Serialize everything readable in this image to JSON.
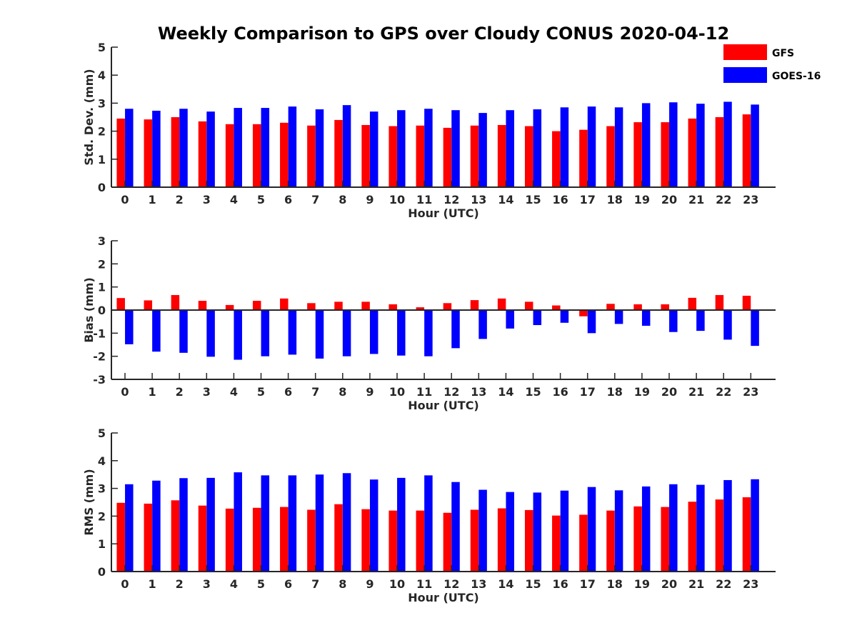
{
  "title": "Weekly Comparison to GPS over Cloudy CONUS 2020-04-12",
  "legend": [
    {
      "name": "GFS",
      "color": "#ff0000"
    },
    {
      "name": "GOES-16",
      "color": "#0000ff"
    }
  ],
  "chart_data": [
    {
      "type": "bar",
      "xlabel": "Hour (UTC)",
      "ylabel": "Std. Dev. (mm)",
      "ylim": [
        0,
        5
      ],
      "yticks": [
        0,
        1,
        2,
        3,
        4,
        5
      ],
      "categories": [
        "0",
        "1",
        "2",
        "3",
        "4",
        "5",
        "6",
        "7",
        "8",
        "9",
        "10",
        "11",
        "12",
        "13",
        "14",
        "15",
        "16",
        "17",
        "18",
        "19",
        "20",
        "21",
        "22",
        "23"
      ],
      "series": [
        {
          "name": "GFS",
          "color": "#ff0000",
          "values": [
            2.45,
            2.42,
            2.5,
            2.35,
            2.25,
            2.25,
            2.3,
            2.2,
            2.4,
            2.22,
            2.18,
            2.2,
            2.12,
            2.2,
            2.22,
            2.18,
            2.0,
            2.05,
            2.18,
            2.32,
            2.32,
            2.45,
            2.5,
            2.6
          ]
        },
        {
          "name": "GOES-16",
          "color": "#0000ff",
          "values": [
            2.8,
            2.73,
            2.8,
            2.7,
            2.83,
            2.83,
            2.88,
            2.78,
            2.93,
            2.7,
            2.75,
            2.8,
            2.75,
            2.65,
            2.75,
            2.78,
            2.85,
            2.88,
            2.85,
            3.0,
            3.03,
            2.98,
            3.05,
            2.95
          ]
        }
      ]
    },
    {
      "type": "bar",
      "xlabel": "Hour (UTC)",
      "ylabel": "Bias (mm)",
      "ylim": [
        -3,
        3
      ],
      "yticks": [
        -3,
        -2,
        -1,
        0,
        1,
        2,
        3
      ],
      "categories": [
        "0",
        "1",
        "2",
        "3",
        "4",
        "5",
        "6",
        "7",
        "8",
        "9",
        "10",
        "11",
        "12",
        "13",
        "14",
        "15",
        "16",
        "17",
        "18",
        "19",
        "20",
        "21",
        "22",
        "23"
      ],
      "series": [
        {
          "name": "GFS",
          "color": "#ff0000",
          "values": [
            0.52,
            0.42,
            0.65,
            0.4,
            0.22,
            0.4,
            0.5,
            0.3,
            0.36,
            0.36,
            0.25,
            0.12,
            0.3,
            0.43,
            0.5,
            0.36,
            0.2,
            -0.27,
            0.27,
            0.25,
            0.25,
            0.53,
            0.65,
            0.62
          ]
        },
        {
          "name": "GOES-16",
          "color": "#0000ff",
          "values": [
            -1.48,
            -1.8,
            -1.85,
            -2.02,
            -2.15,
            -2.0,
            -1.93,
            -2.1,
            -2.0,
            -1.9,
            -1.97,
            -2.0,
            -1.65,
            -1.25,
            -0.8,
            -0.65,
            -0.55,
            -1.0,
            -0.6,
            -0.68,
            -0.95,
            -0.9,
            -1.28,
            -1.55
          ]
        }
      ]
    },
    {
      "type": "bar",
      "xlabel": "Hour (UTC)",
      "ylabel": "RMS (mm)",
      "ylim": [
        0,
        5
      ],
      "yticks": [
        0,
        1,
        2,
        3,
        4,
        5
      ],
      "categories": [
        "0",
        "1",
        "2",
        "3",
        "4",
        "5",
        "6",
        "7",
        "8",
        "9",
        "10",
        "11",
        "12",
        "13",
        "14",
        "15",
        "16",
        "17",
        "18",
        "19",
        "20",
        "21",
        "22",
        "23"
      ],
      "series": [
        {
          "name": "GFS",
          "color": "#ff0000",
          "values": [
            2.48,
            2.45,
            2.57,
            2.38,
            2.27,
            2.3,
            2.33,
            2.23,
            2.43,
            2.25,
            2.2,
            2.2,
            2.12,
            2.23,
            2.28,
            2.22,
            2.02,
            2.05,
            2.2,
            2.35,
            2.33,
            2.52,
            2.6,
            2.68
          ]
        },
        {
          "name": "GOES-16",
          "color": "#0000ff",
          "values": [
            3.15,
            3.28,
            3.37,
            3.38,
            3.58,
            3.47,
            3.47,
            3.5,
            3.55,
            3.32,
            3.38,
            3.47,
            3.23,
            2.95,
            2.87,
            2.85,
            2.92,
            3.05,
            2.93,
            3.07,
            3.15,
            3.13,
            3.3,
            3.33
          ]
        }
      ]
    }
  ]
}
